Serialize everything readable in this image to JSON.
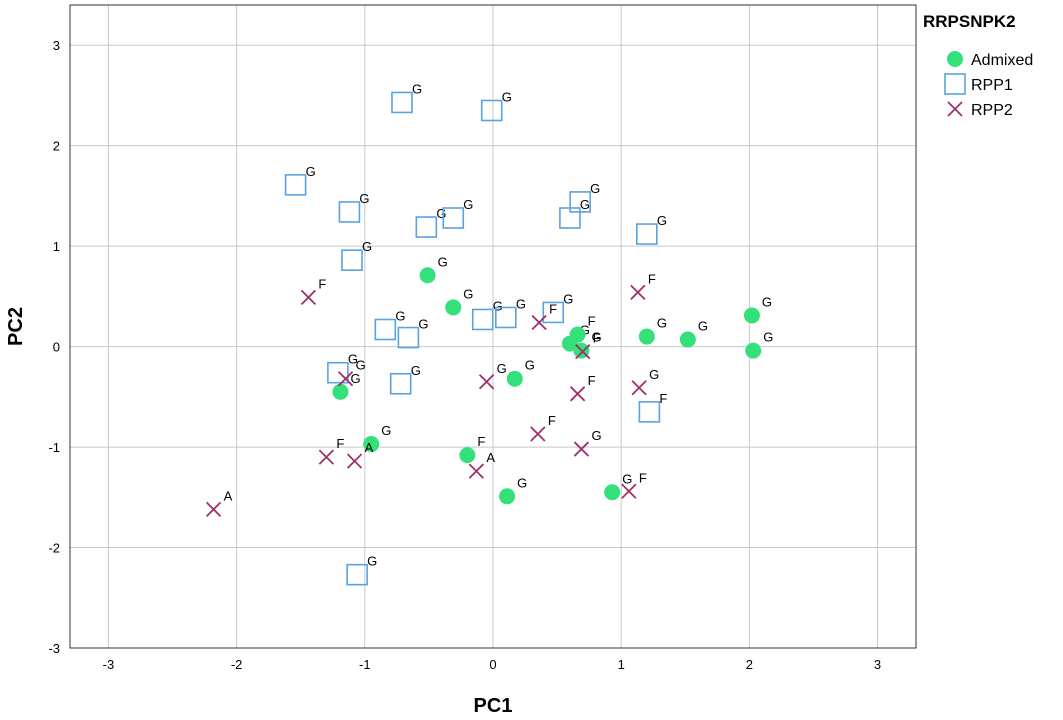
{
  "chart_data": {
    "type": "scatter",
    "xlabel": "PC1",
    "ylabel": "PC2",
    "xlim": [
      -3.3,
      3.3
    ],
    "ylim": [
      -3,
      3.4
    ],
    "xticks": [
      -3,
      -2,
      -1,
      0,
      1,
      2,
      3
    ],
    "yticks": [
      -3,
      -2,
      -1,
      0,
      1,
      2,
      3
    ],
    "grid": true,
    "legend": {
      "title": "RRPSNPK2",
      "placement": "top-right outside plot",
      "entries": [
        "Admixed",
        "RPP1",
        "RPP2"
      ]
    },
    "series": [
      {
        "name": "Admixed",
        "marker": "filled-circle",
        "color": "#33e07a",
        "points": [
          {
            "x": -0.51,
            "y": 0.71,
            "label": "G"
          },
          {
            "x": -0.31,
            "y": 0.39,
            "label": "G"
          },
          {
            "x": 0.17,
            "y": -0.32,
            "label": "G"
          },
          {
            "x": 0.6,
            "y": 0.03,
            "label": "G"
          },
          {
            "x": 0.66,
            "y": 0.12,
            "label": "F"
          },
          {
            "x": 0.69,
            "y": -0.04,
            "label": "G"
          },
          {
            "x": 1.2,
            "y": 0.1,
            "label": "G"
          },
          {
            "x": 1.52,
            "y": 0.07,
            "label": "G"
          },
          {
            "x": 2.02,
            "y": 0.31,
            "label": "G"
          },
          {
            "x": 2.03,
            "y": -0.04,
            "label": "G"
          },
          {
            "x": -1.19,
            "y": -0.45,
            "label": "G"
          },
          {
            "x": -0.95,
            "y": -0.97,
            "label": "G"
          },
          {
            "x": -0.2,
            "y": -1.08,
            "label": "F"
          },
          {
            "x": 0.11,
            "y": -1.49,
            "label": "G"
          },
          {
            "x": 0.93,
            "y": -1.45,
            "label": "G"
          }
        ]
      },
      {
        "name": "RPP1",
        "marker": "open-square",
        "color": "#5aa3e0",
        "points": [
          {
            "x": -0.71,
            "y": 2.43,
            "label": "G"
          },
          {
            "x": -0.01,
            "y": 2.35,
            "label": "G"
          },
          {
            "x": -1.54,
            "y": 1.61,
            "label": "G"
          },
          {
            "x": -1.12,
            "y": 1.34,
            "label": "G"
          },
          {
            "x": -0.52,
            "y": 1.19,
            "label": "G"
          },
          {
            "x": -0.31,
            "y": 1.28,
            "label": "G"
          },
          {
            "x": 0.6,
            "y": 1.28,
            "label": "G"
          },
          {
            "x": 0.68,
            "y": 1.44,
            "label": "G"
          },
          {
            "x": 1.2,
            "y": 1.12,
            "label": "G"
          },
          {
            "x": -1.1,
            "y": 0.86,
            "label": "G"
          },
          {
            "x": -0.84,
            "y": 0.17,
            "label": "G"
          },
          {
            "x": -0.66,
            "y": 0.09,
            "label": "G"
          },
          {
            "x": -0.08,
            "y": 0.27,
            "label": "G"
          },
          {
            "x": 0.1,
            "y": 0.29,
            "label": "G"
          },
          {
            "x": 0.47,
            "y": 0.34,
            "label": "G"
          },
          {
            "x": -1.21,
            "y": -0.26,
            "label": "G"
          },
          {
            "x": -0.72,
            "y": -0.37,
            "label": "G"
          },
          {
            "x": 1.22,
            "y": -0.65,
            "label": "F"
          },
          {
            "x": -1.06,
            "y": -2.27,
            "label": "G"
          }
        ]
      },
      {
        "name": "RPP2",
        "marker": "x",
        "color": "#a0306a",
        "points": [
          {
            "x": -1.44,
            "y": 0.49,
            "label": "F"
          },
          {
            "x": 0.36,
            "y": 0.24,
            "label": "F"
          },
          {
            "x": 1.13,
            "y": 0.54,
            "label": "F"
          },
          {
            "x": 0.7,
            "y": -0.05,
            "label": "F"
          },
          {
            "x": -1.15,
            "y": -0.32,
            "label": "G"
          },
          {
            "x": -0.05,
            "y": -0.35,
            "label": "G"
          },
          {
            "x": 0.66,
            "y": -0.47,
            "label": "F"
          },
          {
            "x": 1.14,
            "y": -0.41,
            "label": "G"
          },
          {
            "x": 0.35,
            "y": -0.87,
            "label": "F"
          },
          {
            "x": 0.69,
            "y": -1.02,
            "label": "G"
          },
          {
            "x": -1.3,
            "y": -1.1,
            "label": "F"
          },
          {
            "x": -1.08,
            "y": -1.14,
            "label": "A"
          },
          {
            "x": -0.13,
            "y": -1.24,
            "label": "A"
          },
          {
            "x": 1.06,
            "y": -1.44,
            "label": "F"
          },
          {
            "x": -2.18,
            "y": -1.62,
            "label": "A"
          }
        ]
      }
    ]
  }
}
